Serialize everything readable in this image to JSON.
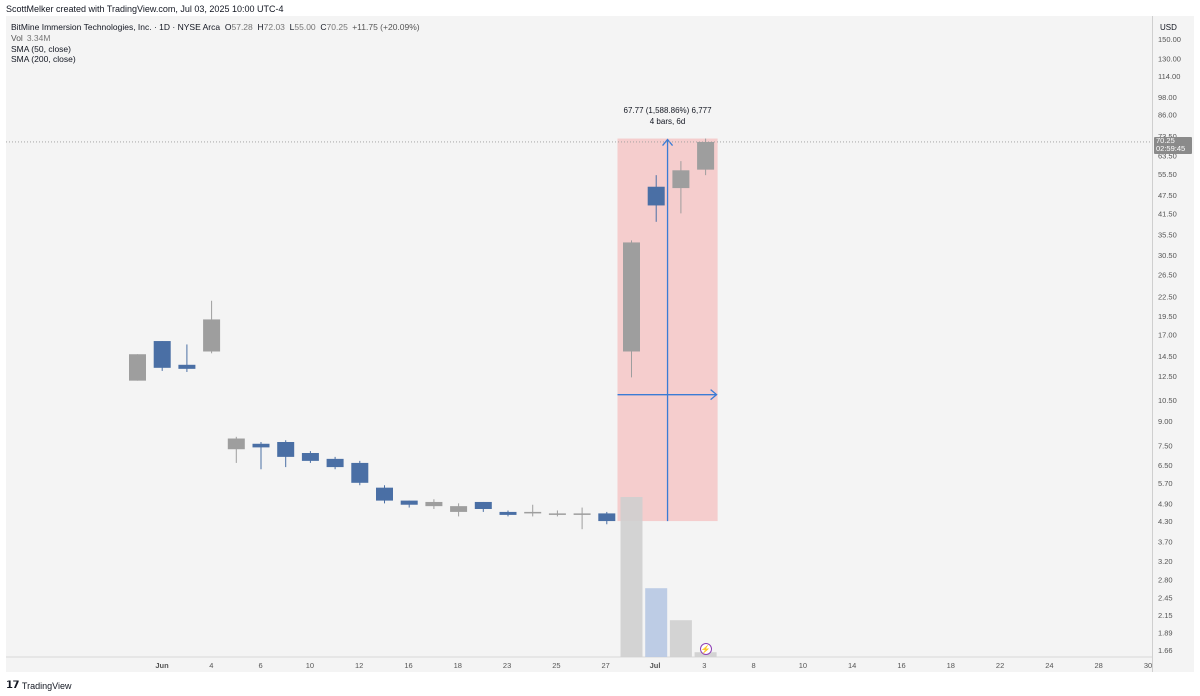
{
  "header": {
    "created_line": "ScottMelker created with TradingView.com, Jul 03, 2025 10:00 UTC-4"
  },
  "legend": {
    "symbol_line": "BitMine Immersion Technologies, Inc. · 1D · NYSE Arca",
    "ohlc": {
      "o_label": "O",
      "o_value": "57.28",
      "h_label": "H",
      "h_value": "72.03",
      "l_label": "L",
      "l_value": "55.00",
      "c_label": "C",
      "c_value": "70.25",
      "change": "+11.75 (+20.09%)"
    },
    "vol_label": "Vol",
    "vol_value": "3.34M",
    "sma50": "SMA (50, close)",
    "sma200": "SMA (200, close)"
  },
  "price_axis": {
    "currency": "USD",
    "current_price": "70.25",
    "countdown": "02:59:45"
  },
  "measure": {
    "line1": "67.77 (1,588.86%) 6,777",
    "line2": "4 bars, 6d"
  },
  "footer": {
    "brand": "TradingView"
  },
  "colors": {
    "up": "#9e9e9e",
    "down": "#4a6fa5",
    "measure_fill": "#f5c6c6",
    "measure_line": "#3a7bd5"
  },
  "chart_data": {
    "type": "candlestick",
    "y_scale": "log",
    "ylim": [
      1.5,
      170
    ],
    "y_ticks": [
      150.0,
      130.0,
      114.0,
      98.0,
      86.0,
      73.5,
      63.5,
      55.5,
      47.5,
      41.5,
      35.5,
      30.5,
      26.5,
      22.5,
      19.5,
      17.0,
      14.5,
      12.5,
      10.5,
      9.0,
      7.5,
      6.5,
      5.7,
      4.9,
      4.3,
      3.7,
      3.2,
      2.8,
      2.45,
      2.15,
      1.89,
      1.66
    ],
    "x_ticks": [
      "Jun",
      "4",
      "6",
      "10",
      "12",
      "16",
      "18",
      "23",
      "25",
      "27",
      "Jul",
      "3",
      "8",
      "10",
      "14",
      "16",
      "18",
      "22",
      "24",
      "28",
      "30"
    ],
    "candles": [
      {
        "o": 12.1,
        "h": 14.7,
        "l": 12.1,
        "c": 14.7
      },
      {
        "o": 16.2,
        "h": 16.2,
        "l": 13.0,
        "c": 13.3
      },
      {
        "o": 13.6,
        "h": 15.8,
        "l": 12.9,
        "c": 13.2
      },
      {
        "o": 15.0,
        "h": 21.8,
        "l": 14.8,
        "c": 19.0
      },
      {
        "o": 7.3,
        "h": 8.0,
        "l": 6.6,
        "c": 7.9
      },
      {
        "o": 7.6,
        "h": 7.7,
        "l": 6.3,
        "c": 7.4
      },
      {
        "o": 7.7,
        "h": 7.8,
        "l": 6.4,
        "c": 6.9
      },
      {
        "o": 7.1,
        "h": 7.2,
        "l": 6.6,
        "c": 6.7
      },
      {
        "o": 6.8,
        "h": 6.9,
        "l": 6.3,
        "c": 6.4
      },
      {
        "o": 6.6,
        "h": 6.7,
        "l": 5.6,
        "c": 5.7
      },
      {
        "o": 5.5,
        "h": 5.6,
        "l": 4.9,
        "c": 5.0
      },
      {
        "o": 5.0,
        "h": 5.0,
        "l": 4.75,
        "c": 4.85
      },
      {
        "o": 4.8,
        "h": 5.05,
        "l": 4.7,
        "c": 4.95
      },
      {
        "o": 4.6,
        "h": 4.9,
        "l": 4.45,
        "c": 4.8
      },
      {
        "o": 4.95,
        "h": 4.95,
        "l": 4.6,
        "c": 4.7
      },
      {
        "o": 4.6,
        "h": 4.65,
        "l": 4.45,
        "c": 4.5
      },
      {
        "o": 4.55,
        "h": 4.85,
        "l": 4.45,
        "c": 4.6
      },
      {
        "o": 4.5,
        "h": 4.65,
        "l": 4.45,
        "c": 4.55
      },
      {
        "o": 4.5,
        "h": 4.75,
        "l": 4.05,
        "c": 4.55
      },
      {
        "o": 4.55,
        "h": 4.6,
        "l": 4.2,
        "c": 4.3
      },
      {
        "o": 15.0,
        "h": 34.0,
        "l": 12.4,
        "c": 33.5
      },
      {
        "o": 50.5,
        "h": 55.0,
        "l": 39.0,
        "c": 44.0
      },
      {
        "o": 50.0,
        "h": 61.0,
        "l": 41.5,
        "c": 57.0
      },
      {
        "o": 57.28,
        "h": 72.03,
        "l": 55.0,
        "c": 70.25
      }
    ],
    "volume": [
      {
        "i": 20,
        "rel": 1.0,
        "up": true
      },
      {
        "i": 21,
        "rel": 0.43,
        "up": false
      },
      {
        "i": 22,
        "rel": 0.23,
        "up": true
      },
      {
        "i": 23,
        "rel": 0.03,
        "up": true
      }
    ]
  }
}
